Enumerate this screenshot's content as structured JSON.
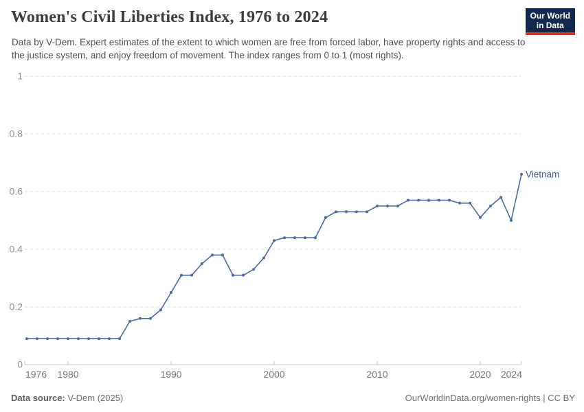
{
  "header": {
    "title": "Women's Civil Liberties Index, 1976 to 2024",
    "subtitle": "Data by V-Dem. Expert estimates of the extent to which women are free from forced labor, have property rights and access to the justice system, and enjoy freedom of movement. The index ranges from 0 to 1 (most rights).",
    "logo": {
      "line1": "Our World",
      "line2": "in Data",
      "bg_color": "#12294D",
      "accent_color": "#D7332C"
    }
  },
  "chart_data": {
    "type": "line",
    "title": "Women's Civil Liberties Index, 1976 to 2024",
    "xlabel": "",
    "ylabel": "",
    "xlim": [
      1976,
      2024
    ],
    "ylim": [
      0,
      1
    ],
    "x_ticks": [
      1976,
      1980,
      1990,
      2000,
      2010,
      2020,
      2024
    ],
    "y_ticks": [
      0,
      0.2,
      0.4,
      0.6,
      0.8,
      1
    ],
    "grid": "horizontal-dashed",
    "legend_position": "end-of-line",
    "series": [
      {
        "name": "Vietnam",
        "color": "#4C6A9C",
        "label_color": "#3D5A8C",
        "x": [
          1976,
          1977,
          1978,
          1979,
          1980,
          1981,
          1982,
          1983,
          1984,
          1985,
          1986,
          1987,
          1988,
          1989,
          1990,
          1991,
          1992,
          1993,
          1994,
          1995,
          1996,
          1997,
          1998,
          1999,
          2000,
          2001,
          2002,
          2003,
          2004,
          2005,
          2006,
          2007,
          2008,
          2009,
          2010,
          2011,
          2012,
          2013,
          2014,
          2015,
          2016,
          2017,
          2018,
          2019,
          2020,
          2021,
          2022,
          2023,
          2024
        ],
        "values": [
          0.09,
          0.09,
          0.09,
          0.09,
          0.09,
          0.09,
          0.09,
          0.09,
          0.09,
          0.09,
          0.15,
          0.16,
          0.16,
          0.19,
          0.25,
          0.31,
          0.31,
          0.35,
          0.38,
          0.38,
          0.31,
          0.31,
          0.33,
          0.37,
          0.43,
          0.44,
          0.44,
          0.44,
          0.44,
          0.51,
          0.53,
          0.53,
          0.53,
          0.53,
          0.55,
          0.55,
          0.55,
          0.57,
          0.57,
          0.57,
          0.57,
          0.57,
          0.56,
          0.56,
          0.51,
          0.55,
          0.58,
          0.5,
          0.66
        ]
      }
    ],
    "colors": {
      "gridline": "#DBDBDB",
      "axis": "#C6C6C6",
      "y_tick_label": "#8F8F8F",
      "x_tick_label": "#767676"
    }
  },
  "footer": {
    "source_label": "Data source:",
    "source_value": "V-Dem (2025)",
    "credit": "OurWorldinData.org/women-rights | CC BY"
  }
}
